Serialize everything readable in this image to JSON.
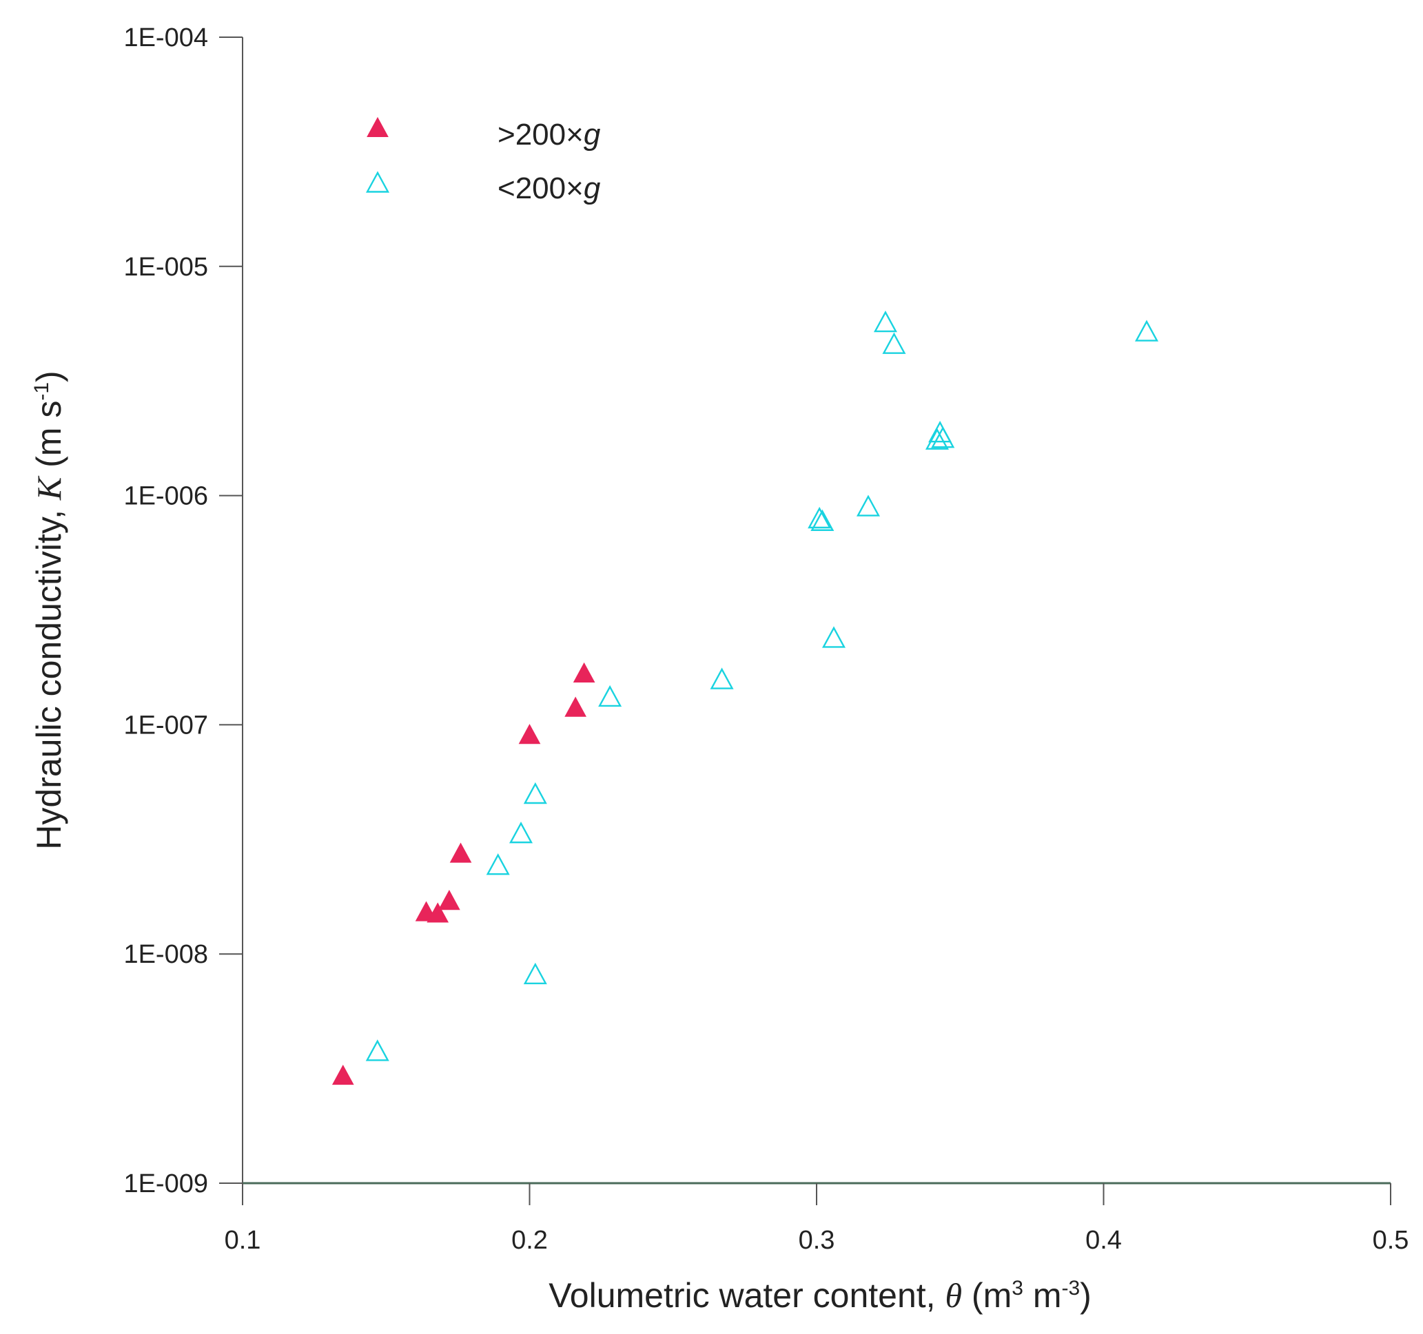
{
  "chart_data": {
    "type": "scatter",
    "title": "",
    "xlabel": {
      "text": "Volumetric water content, θ (m³ m⁻³)",
      "parts": [
        "Volumetric water content, ",
        "θ",
        " (m",
        "3",
        " m",
        "-3",
        ")"
      ]
    },
    "ylabel": {
      "text": "Hydraulic conductivity, K (m s⁻¹)",
      "parts": [
        "Hydraulic conductivity, ",
        "K",
        " (m s",
        "-1",
        ")"
      ]
    },
    "xlim": [
      0.1,
      0.5
    ],
    "ylim": [
      1e-09,
      0.0001
    ],
    "yscale": "log",
    "xticks": [
      0.1,
      0.2,
      0.3,
      0.4,
      0.5
    ],
    "xtick_labels": [
      "0.1",
      "0.2",
      "0.3",
      "0.4",
      "0.5"
    ],
    "yticks": [
      1e-09,
      1e-08,
      1e-07,
      1e-06,
      1e-05,
      0.0001
    ],
    "ytick_labels": [
      "1E-009",
      "1E-008",
      "1E-007",
      "1E-006",
      "1E-005",
      "1E-004"
    ],
    "grid": false,
    "legend_position": "top-left",
    "series": [
      {
        "name": ">200×g",
        "label_parts": [
          ">200×",
          "g"
        ],
        "marker": "filled-triangle",
        "color": "#e8245a",
        "points": [
          {
            "x": 0.135,
            "y": 2.9e-09
          },
          {
            "x": 0.164,
            "y": 1.5e-08
          },
          {
            "x": 0.168,
            "y": 1.48e-08
          },
          {
            "x": 0.172,
            "y": 1.68e-08
          },
          {
            "x": 0.176,
            "y": 2.7e-08
          },
          {
            "x": 0.2,
            "y": 8.9e-08
          },
          {
            "x": 0.216,
            "y": 1.17e-07
          },
          {
            "x": 0.219,
            "y": 1.65e-07
          }
        ]
      },
      {
        "name": "<200×g",
        "label_parts": [
          "<200×",
          "g"
        ],
        "marker": "open-triangle",
        "color": "#19d3e0",
        "points": [
          {
            "x": 0.147,
            "y": 3.7e-09
          },
          {
            "x": 0.189,
            "y": 2.4e-08
          },
          {
            "x": 0.197,
            "y": 3.3e-08
          },
          {
            "x": 0.202,
            "y": 4.9e-08
          },
          {
            "x": 0.202,
            "y": 8e-09
          },
          {
            "x": 0.228,
            "y": 1.3e-07
          },
          {
            "x": 0.267,
            "y": 1.55e-07
          },
          {
            "x": 0.301,
            "y": 7.8e-07
          },
          {
            "x": 0.302,
            "y": 7.6e-07
          },
          {
            "x": 0.306,
            "y": 2.35e-07
          },
          {
            "x": 0.318,
            "y": 8.8e-07
          },
          {
            "x": 0.324,
            "y": 5.6e-06
          },
          {
            "x": 0.327,
            "y": 4.5e-06
          },
          {
            "x": 0.342,
            "y": 1.72e-06
          },
          {
            "x": 0.343,
            "y": 1.85e-06
          },
          {
            "x": 0.344,
            "y": 1.75e-06
          },
          {
            "x": 0.415,
            "y": 5.1e-06
          }
        ]
      }
    ]
  }
}
